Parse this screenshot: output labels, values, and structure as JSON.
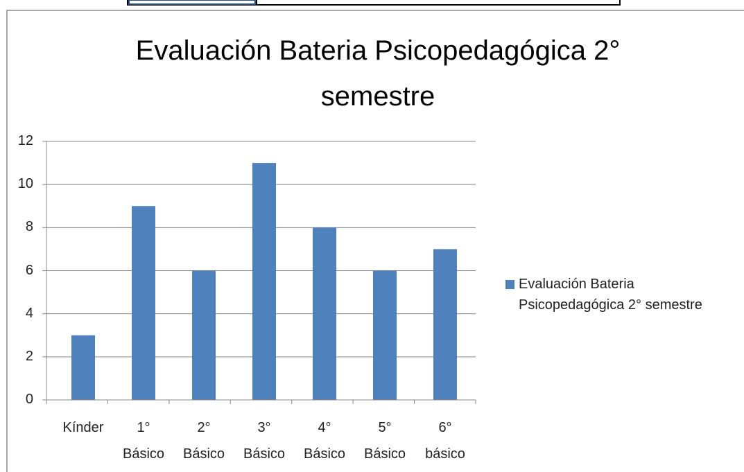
{
  "chart_data": {
    "type": "bar",
    "title": "Evaluación Bateria Psicopedagógica 2° semestre",
    "categories": [
      "Kínder",
      "1° Básico",
      "2° Básico",
      "3° Básico",
      "4° Básico",
      "5° Básico",
      "6° básico"
    ],
    "series": [
      {
        "name": "Evaluación Bateria Psicopedagógica 2° semestre",
        "color": "#4f81bd",
        "values": [
          3,
          9,
          6,
          11,
          8,
          6,
          7
        ]
      }
    ],
    "ylim": [
      0,
      12
    ],
    "yticks": [
      0,
      2,
      4,
      6,
      8,
      10,
      12
    ],
    "grid": true,
    "legend": "right"
  }
}
